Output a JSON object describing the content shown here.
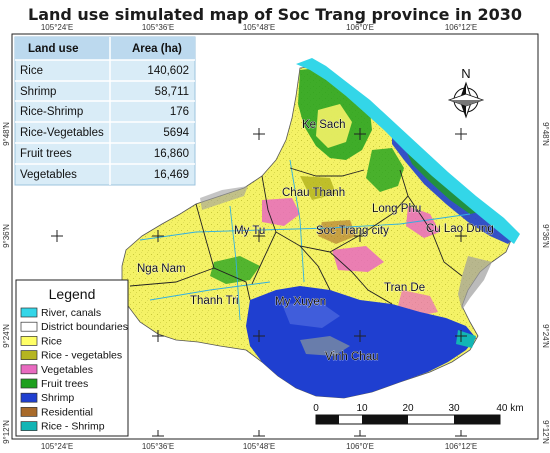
{
  "title": "Land use simulated map of Soc Trang province in 2030",
  "coords": {
    "top": [
      "105°24'E",
      "105°36'E",
      "105°48'E",
      "106°0'E",
      "106°12'E"
    ],
    "bottom": [
      "105°24'E",
      "105°36'E",
      "105°48'E",
      "106°0'E",
      "106°12'E"
    ],
    "left": [
      "9°48'N",
      "9°36'N",
      "9°24'N",
      "9°12'N"
    ],
    "right": [
      "9°48'N",
      "9°36'N",
      "9°24'N",
      "9°12'N"
    ]
  },
  "area_table": {
    "headers": [
      "Land use",
      "Area (ha)"
    ],
    "rows": [
      {
        "name": "Rice",
        "area": "140,602"
      },
      {
        "name": "Shrimp",
        "area": "58,711"
      },
      {
        "name": "Rice-Shrimp",
        "area": "176"
      },
      {
        "name": "Rice-Vegetables",
        "area": "5694"
      },
      {
        "name": "Fruit trees",
        "area": "16,860"
      },
      {
        "name": "Vegetables",
        "area": "16,469"
      }
    ]
  },
  "places": [
    "Ke Sach",
    "Chau Thanh",
    "Long Phu",
    "My Tu",
    "Soc Trang city",
    "Cu Lao Dung",
    "Nga Nam",
    "Thanh Tri",
    "My Xuyen",
    "Tran De",
    "Vinh Chau"
  ],
  "legend": {
    "title": "Legend",
    "items": [
      {
        "label": "River, canals",
        "color": "#33d6e8"
      },
      {
        "label": "District boundaries",
        "color": "#ffffff"
      },
      {
        "label": "Rice",
        "color": "#ffff66"
      },
      {
        "label": "Rice - vegetables",
        "color": "#b5b520"
      },
      {
        "label": "Vegetables",
        "color": "#e86ac0"
      },
      {
        "label": "Fruit trees",
        "color": "#1ea01e"
      },
      {
        "label": "Shrimp",
        "color": "#1f3fd0"
      },
      {
        "label": "Residential",
        "color": "#a86a2a"
      },
      {
        "label": "Rice - Shrimp",
        "color": "#12b5b5"
      }
    ]
  },
  "scale_bar": {
    "ticks": [
      "0",
      "10",
      "20",
      "30",
      "40 km"
    ]
  },
  "north_arrow": {
    "label": "N"
  }
}
